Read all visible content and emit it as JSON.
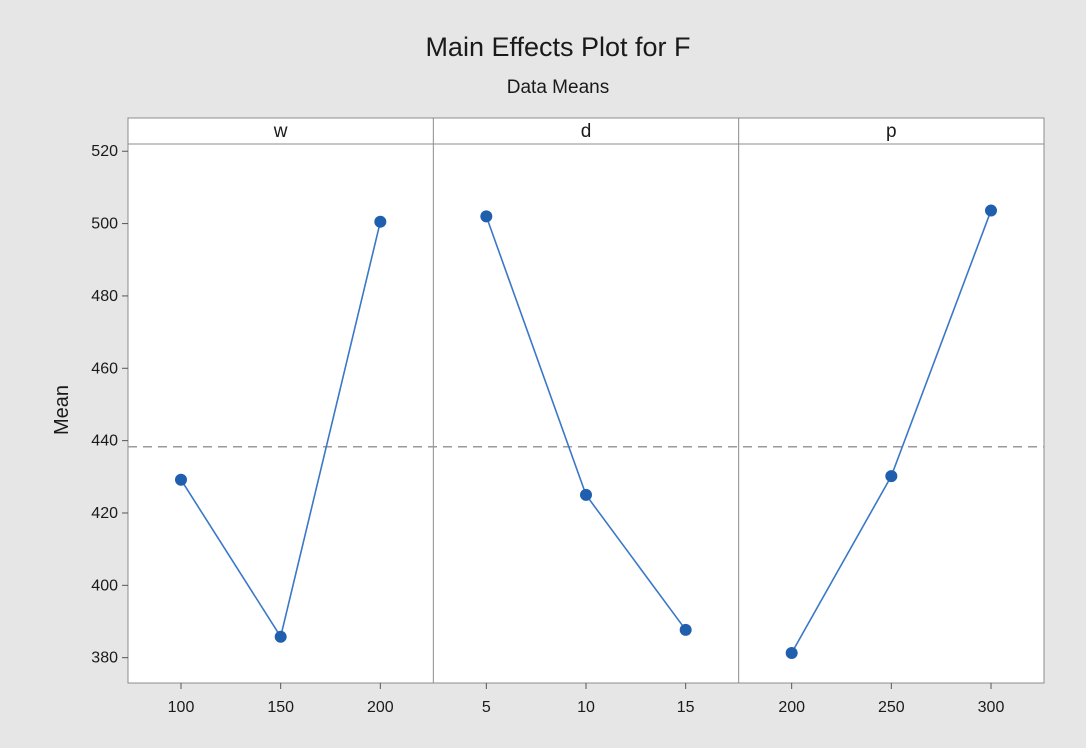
{
  "chart_data": {
    "type": "line",
    "title": "Main Effects Plot for F",
    "subtitle": "Data Means",
    "ylabel": "Mean",
    "ylim": [
      373,
      522
    ],
    "yticks": [
      380,
      400,
      420,
      440,
      460,
      480,
      500,
      520
    ],
    "reference_line": 438.3,
    "grid": false,
    "panels": [
      {
        "factor": "w",
        "x": [
          "100",
          "150",
          "200"
        ],
        "values": [
          429.2,
          385.8,
          500.5
        ]
      },
      {
        "factor": "d",
        "x": [
          "5",
          "10",
          "15"
        ],
        "values": [
          502.0,
          425.0,
          387.7
        ]
      },
      {
        "factor": "p",
        "x": [
          "200",
          "250",
          "300"
        ],
        "values": [
          381.3,
          430.2,
          503.6
        ]
      }
    ],
    "colors": {
      "series": "#1f5fae",
      "line": "#3a78c7",
      "reference": "#9a9a9a",
      "background": "#e6e6e6",
      "plot_area": "#ffffff"
    }
  }
}
